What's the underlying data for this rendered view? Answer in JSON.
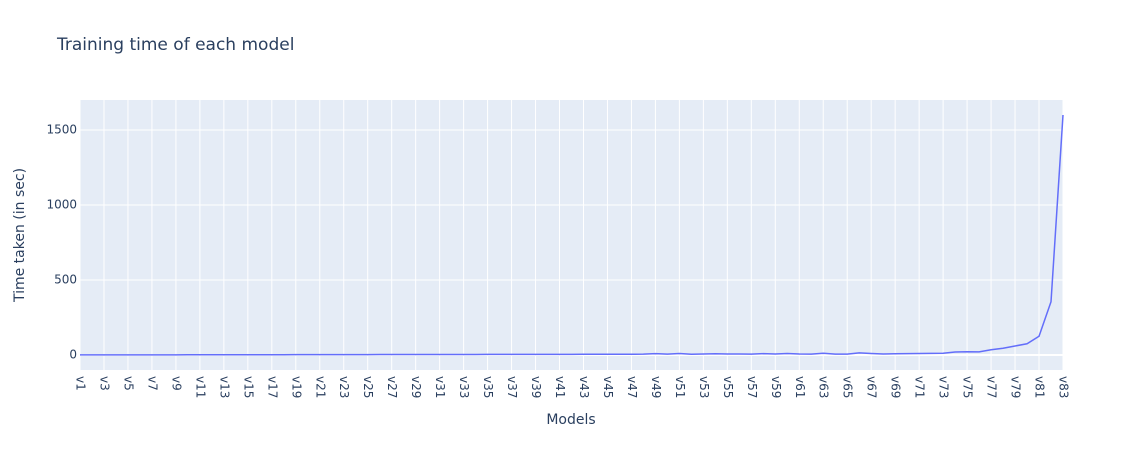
{
  "chart_data": {
    "type": "line",
    "title": "Training time of each model",
    "xlabel": "Models",
    "ylabel": "Time taken (in sec)",
    "x": [
      "v1",
      "v2",
      "v3",
      "v4",
      "v5",
      "v6",
      "v7",
      "v8",
      "v9",
      "v10",
      "v11",
      "v12",
      "v13",
      "v14",
      "v15",
      "v16",
      "v17",
      "v18",
      "v19",
      "v20",
      "v21",
      "v22",
      "v23",
      "v24",
      "v25",
      "v26",
      "v27",
      "v28",
      "v29",
      "v30",
      "v31",
      "v32",
      "v33",
      "v34",
      "v35",
      "v36",
      "v37",
      "v38",
      "v39",
      "v40",
      "v41",
      "v42",
      "v43",
      "v44",
      "v45",
      "v46",
      "v47",
      "v48",
      "v49",
      "v50",
      "v51",
      "v52",
      "v53",
      "v54",
      "v55",
      "v56",
      "v57",
      "v58",
      "v59",
      "v60",
      "v61",
      "v62",
      "v63",
      "v64",
      "v65",
      "v66",
      "v67",
      "v68",
      "v69",
      "v70",
      "v71",
      "v72",
      "v73",
      "v74",
      "v75",
      "v76",
      "v77",
      "v78",
      "v79",
      "v80",
      "v81",
      "v82",
      "v83"
    ],
    "series": [
      {
        "color": "#636efa",
        "values": [
          0.5,
          0.6,
          0.7,
          0.8,
          0.9,
          1,
          1,
          1.1,
          1.2,
          1.3,
          1.4,
          1.5,
          1.6,
          1.7,
          1.8,
          1.9,
          2,
          2.1,
          2.2,
          2.3,
          2.4,
          2.5,
          2.6,
          2.7,
          2.8,
          2.9,
          3,
          3.1,
          3.2,
          3.3,
          3.4,
          3.5,
          3.6,
          3.7,
          3.8,
          3.9,
          4,
          4.1,
          4.2,
          4.3,
          4.4,
          4.5,
          4.6,
          4.7,
          4.8,
          4.9,
          5,
          5.5,
          9,
          6,
          10,
          5,
          7,
          8,
          7,
          7,
          6,
          9,
          7,
          10,
          7,
          6,
          12,
          6,
          6,
          14,
          10,
          7,
          8,
          9,
          10,
          11,
          12,
          20,
          22,
          21,
          35,
          45,
          60,
          75,
          125,
          355,
          1600
        ]
      }
    ],
    "x_tick_labels": [
      "v1",
      "v3",
      "v5",
      "v7",
      "v9",
      "v11",
      "v13",
      "v15",
      "v17",
      "v19",
      "v21",
      "v23",
      "v25",
      "v27",
      "v29",
      "v31",
      "v33",
      "v35",
      "v37",
      "v39",
      "v41",
      "v43",
      "v45",
      "v47",
      "v49",
      "v51",
      "v53",
      "v55",
      "v57",
      "v59",
      "v61",
      "v63",
      "v65",
      "v67",
      "v69",
      "v71",
      "v73",
      "v75",
      "v77",
      "v79",
      "v81",
      "v83"
    ],
    "y_ticks": [
      0,
      500,
      1000,
      1500
    ],
    "ylim": [
      -100,
      1700
    ],
    "grid": true,
    "plot_bgcolor": "#e5ecf6"
  }
}
